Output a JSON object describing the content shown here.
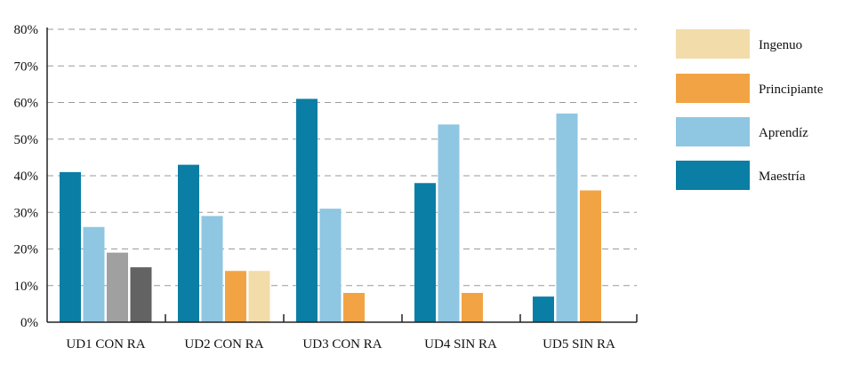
{
  "chart_data": {
    "type": "bar",
    "categories": [
      "UD1 CON RA",
      "UD2 CON RA",
      "UD3 CON RA",
      "UD4 SIN RA",
      "UD5 SIN RA"
    ],
    "ylim": [
      0,
      80
    ],
    "yticks": [
      "0%",
      "10%",
      "20%",
      "30%",
      "40%",
      "50%",
      "60%",
      "70%",
      "80%"
    ],
    "grid": true,
    "legend_position": "right",
    "legend": [
      {
        "label": "Ingenuo",
        "color": "#f2dcaa"
      },
      {
        "label": "Principiante",
        "color": "#f2a444"
      },
      {
        "label": "Aprendíz",
        "color": "#8fc6e2"
      },
      {
        "label": "Maestría",
        "color": "#0a7ea4"
      }
    ],
    "groups": [
      {
        "category": "UD1 CON RA",
        "bars": [
          {
            "value": 41,
            "color": "#0a7ea4"
          },
          {
            "value": 26,
            "color": "#8fc6e2"
          },
          {
            "value": 19,
            "color": "#a0a0a0"
          },
          {
            "value": 15,
            "color": "#636363"
          }
        ]
      },
      {
        "category": "UD2 CON RA",
        "bars": [
          {
            "value": 43,
            "color": "#0a7ea4"
          },
          {
            "value": 29,
            "color": "#8fc6e2"
          },
          {
            "value": 14,
            "color": "#f2a444"
          },
          {
            "value": 14,
            "color": "#f2dcaa"
          }
        ]
      },
      {
        "category": "UD3 CON RA",
        "bars": [
          {
            "value": 61,
            "color": "#0a7ea4"
          },
          {
            "value": 31,
            "color": "#8fc6e2"
          },
          {
            "value": 8,
            "color": "#f2a444"
          }
        ]
      },
      {
        "category": "UD4 SIN RA",
        "bars": [
          {
            "value": 38,
            "color": "#0a7ea4"
          },
          {
            "value": 54,
            "color": "#8fc6e2"
          },
          {
            "value": 8,
            "color": "#f2a444"
          }
        ]
      },
      {
        "category": "UD5 SIN RA",
        "bars": [
          {
            "value": 7,
            "color": "#0a7ea4"
          },
          {
            "value": 57,
            "color": "#8fc6e2"
          },
          {
            "value": 36,
            "color": "#f2a444"
          }
        ]
      }
    ]
  }
}
